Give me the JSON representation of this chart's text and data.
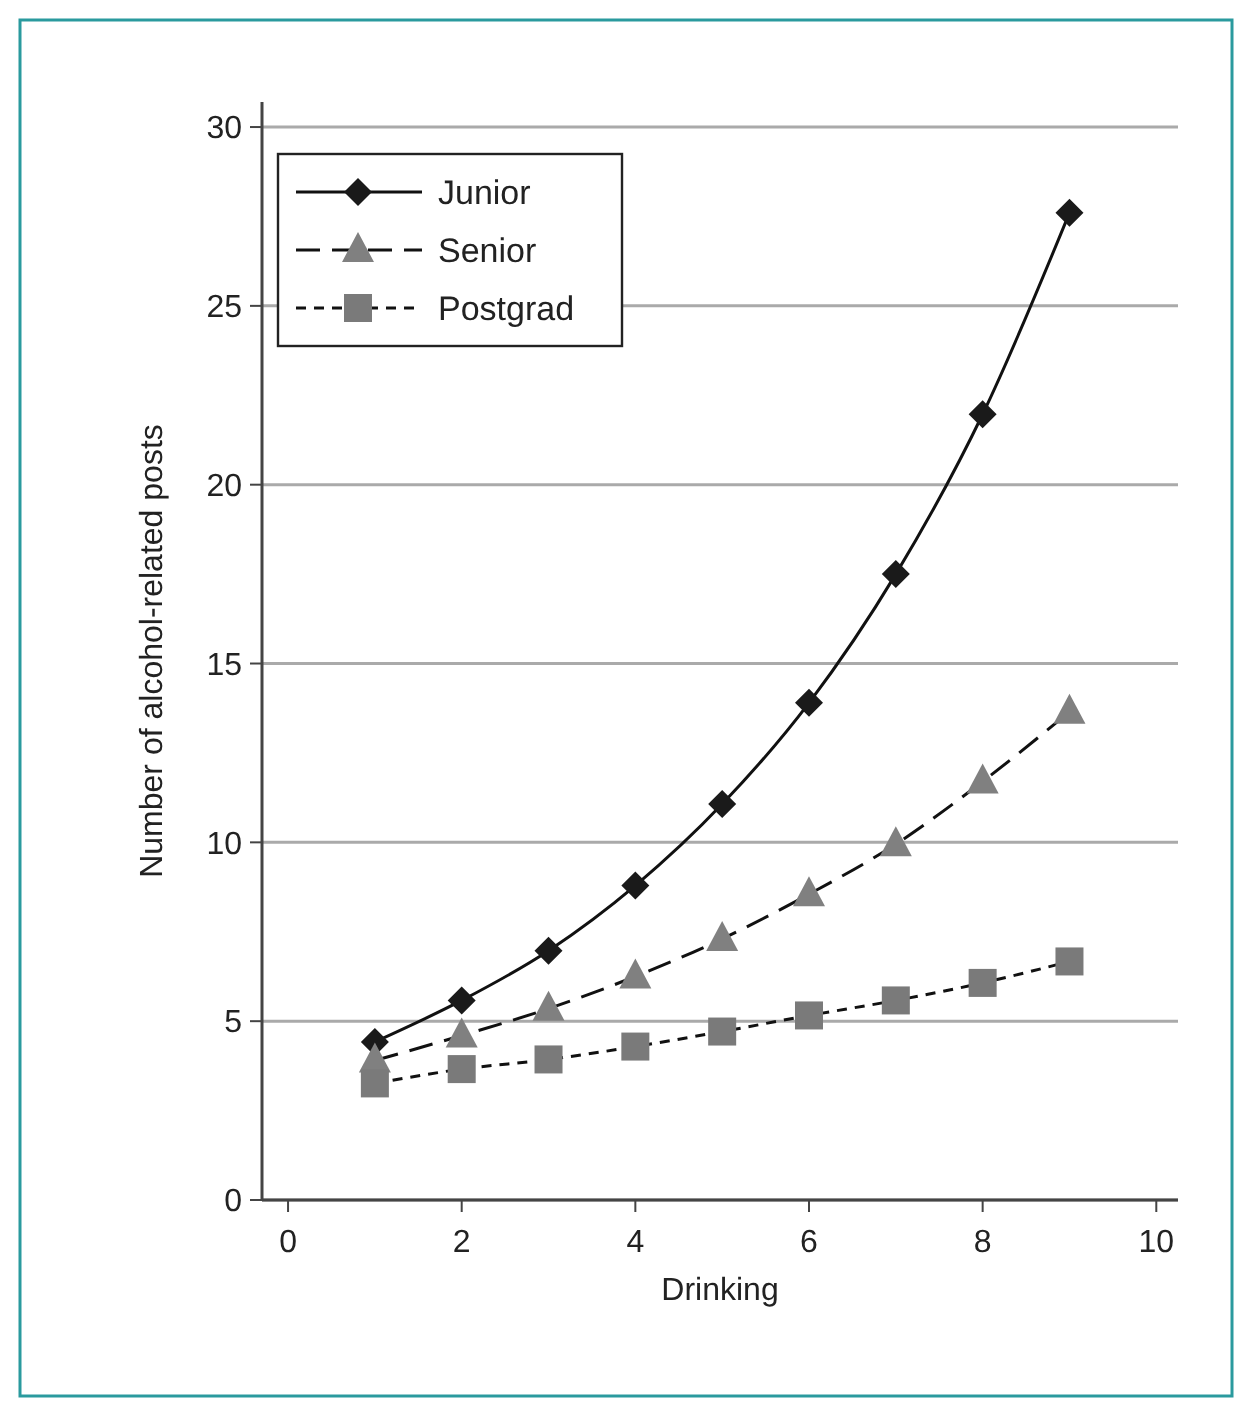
{
  "chart_data": {
    "type": "line",
    "xlabel": "Drinking",
    "ylabel": "Number of alcohol-related posts",
    "x": [
      1,
      2,
      3,
      4,
      5,
      6,
      7,
      8,
      9
    ],
    "series": [
      {
        "name": "Junior",
        "color": "#1a1a1a",
        "marker": "diamond",
        "line_style": "solid",
        "values": [
          4.42,
          5.58,
          6.97,
          8.79,
          11.07,
          13.9,
          17.5,
          21.97,
          27.6
        ]
      },
      {
        "name": "Senior",
        "color": "#808080",
        "marker": "triangle",
        "line_style": "dashed",
        "values": [
          3.9,
          4.6,
          5.35,
          6.25,
          7.3,
          8.55,
          9.95,
          11.7,
          13.65
        ]
      },
      {
        "name": "Postgrad",
        "color": "#7a7a7a",
        "marker": "square",
        "line_style": "dotted",
        "values": [
          3.26,
          3.66,
          3.93,
          4.29,
          4.71,
          5.16,
          5.58,
          6.07,
          6.67
        ]
      }
    ],
    "xlim": [
      -0.3,
      10.25
    ],
    "xticks": [
      0,
      2,
      4,
      6,
      8,
      10
    ],
    "ylim": [
      0,
      30.7
    ],
    "yticks": [
      0,
      5,
      10,
      15,
      20,
      25,
      30
    ],
    "grid": "y",
    "legend": "top left"
  }
}
